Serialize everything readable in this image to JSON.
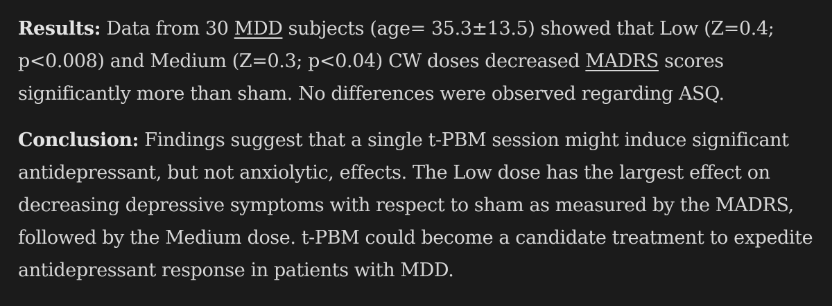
{
  "results": {
    "label": "Results:",
    "text_1": " Data from 30 ",
    "link_mdd": "MDD",
    "text_2": " subjects (age= 35.3±13.5) showed that Low (Z=0.4; p<0.008) and Medium (Z=0.3; p<0.04) CW doses decreased ",
    "link_madrs": "MADRS",
    "text_3": " scores significantly more than sham. No differences were observed regarding ASQ."
  },
  "conclusion": {
    "label": "Conclusion:",
    "text": " Findings suggest that a single t-PBM session might induce significant antidepressant, but not anxiolytic, effects. The Low dose has the largest effect on decreasing depressive symptoms with respect to sham as measured by the MADRS, followed by the Medium dose. t-PBM could become a candidate treatment to expedite antidepressant response in patients with MDD."
  }
}
